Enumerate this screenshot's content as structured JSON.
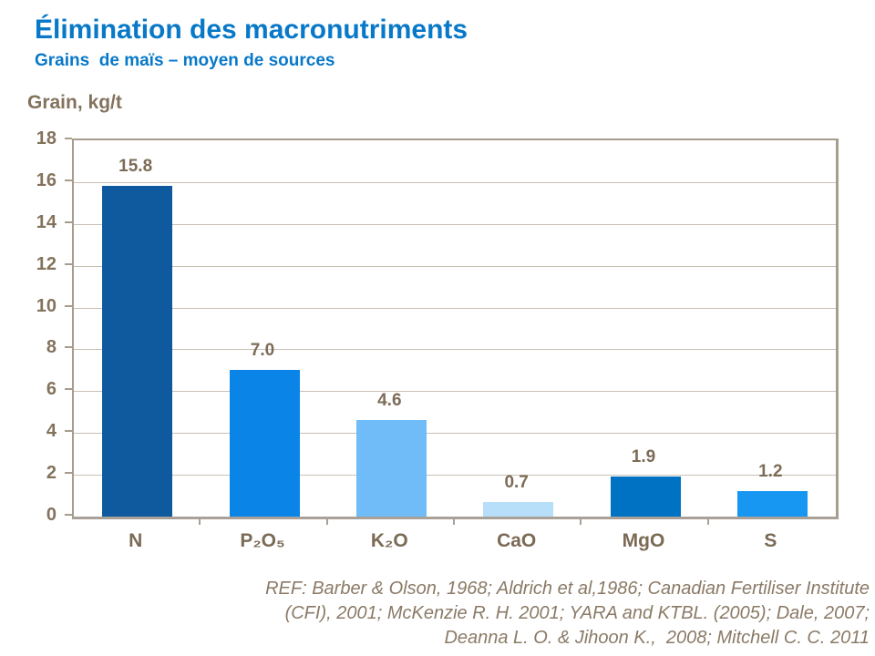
{
  "header": {
    "title": "Élimination des macronutriments",
    "subtitle": "Grains  de maïs – moyen de sources"
  },
  "chart_data": {
    "type": "bar",
    "title": "Élimination des macronutriments — Grains de maïs, moyen de sources",
    "xlabel": "",
    "ylabel": "Grain, kg/t",
    "categories": [
      "N",
      "P₂O₅",
      "K₂O",
      "CaO",
      "MgO",
      "S"
    ],
    "values": [
      15.8,
      7.0,
      4.6,
      0.7,
      1.9,
      1.2
    ],
    "value_labels": [
      "15.8",
      "7.0",
      "4.6",
      "0.7",
      "1.9",
      "1.2"
    ],
    "bar_colors": [
      "#0F5A9E",
      "#0A84E6",
      "#6FBCF8",
      "#B8DFFA",
      "#0072C4",
      "#1796F2"
    ],
    "ylim": [
      0,
      18
    ],
    "ytick_step": 2,
    "grid": true,
    "legend": false
  },
  "footer": {
    "ref_lines": [
      "REF: Barber & Olson, 1968; Aldrich et al,1986; Canadian Fertiliser Institute",
      "(CFI), 2001; McKenzie R. H. 2001; YARA and KTBL. (2005); Dale, 2007;",
      "Deanna L. O. & Jihoon K.,  2008; Mitchell C. C. 2011"
    ]
  },
  "colors": {
    "title_blue": "#0878C8",
    "axis_text_brown": "#83725C",
    "frame": "#A79D8F",
    "gridline": "#C9C0B4",
    "ref_text": "#8A7A66"
  }
}
